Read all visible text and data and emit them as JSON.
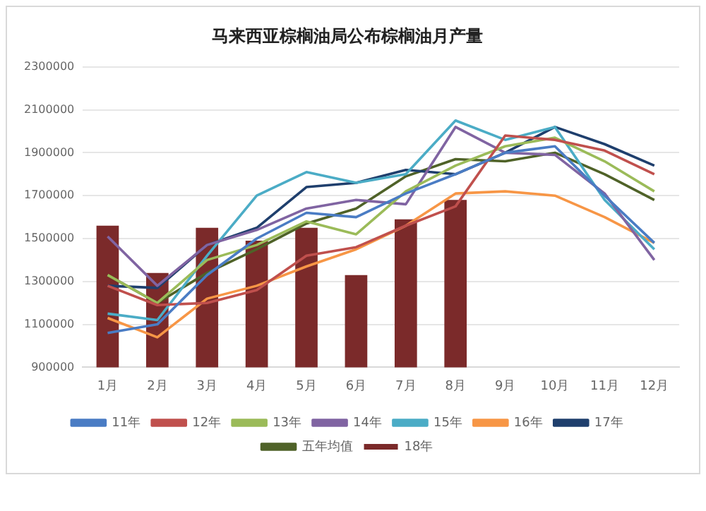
{
  "chart_data": {
    "type": "line",
    "title": "马来西亚棕榈油局公布棕榈油月产量",
    "categories": [
      "1月",
      "2月",
      "3月",
      "4月",
      "5月",
      "6月",
      "7月",
      "8月",
      "9月",
      "10月",
      "11月",
      "12月"
    ],
    "series": [
      {
        "name": "18年",
        "type": "bar",
        "color": "#7b2a2a",
        "values": [
          1560000,
          1340000,
          1550000,
          1490000,
          1550000,
          1330000,
          1590000,
          1680000,
          null,
          null,
          null,
          null
        ]
      },
      {
        "name": "11年",
        "color": "#4a7cc4",
        "values": [
          1060000,
          1100000,
          1330000,
          1500000,
          1620000,
          1600000,
          1710000,
          1800000,
          1900000,
          1930000,
          1700000,
          1480000
        ]
      },
      {
        "name": "12年",
        "color": "#c0504d",
        "values": [
          1280000,
          1190000,
          1200000,
          1260000,
          1420000,
          1460000,
          1560000,
          1650000,
          1980000,
          1960000,
          1910000,
          1800000
        ]
      },
      {
        "name": "13年",
        "color": "#9bbb59",
        "values": [
          1330000,
          1200000,
          1400000,
          1470000,
          1580000,
          1520000,
          1720000,
          1840000,
          1930000,
          1970000,
          1860000,
          1720000
        ]
      },
      {
        "name": "14年",
        "color": "#8064a2",
        "values": [
          1510000,
          1280000,
          1470000,
          1540000,
          1640000,
          1680000,
          1660000,
          2020000,
          1900000,
          1890000,
          1710000,
          1400000
        ]
      },
      {
        "name": "15年",
        "color": "#4bacc6",
        "values": [
          1150000,
          1120000,
          1420000,
          1700000,
          1810000,
          1760000,
          1800000,
          2050000,
          1960000,
          2020000,
          1680000,
          1450000
        ]
      },
      {
        "name": "16年",
        "color": "#f79646",
        "values": [
          1130000,
          1040000,
          1220000,
          1280000,
          1370000,
          1450000,
          1560000,
          1710000,
          1720000,
          1700000,
          1600000,
          1480000
        ]
      },
      {
        "name": "17年",
        "color": "#1f3f6d",
        "values": [
          1280000,
          1270000,
          1470000,
          1550000,
          1740000,
          1760000,
          1820000,
          1800000,
          1900000,
          2020000,
          1940000,
          1840000
        ]
      },
      {
        "name": "五年均值",
        "color": "#4f6228",
        "values": [
          1330000,
          1200000,
          1340000,
          1450000,
          1570000,
          1640000,
          1790000,
          1870000,
          1860000,
          1900000,
          1800000,
          1680000
        ]
      }
    ],
    "ylim": [
      900000,
      2300000
    ],
    "yticks": [
      900000,
      1100000,
      1300000,
      1500000,
      1700000,
      1900000,
      2100000,
      2300000
    ],
    "grid": "y",
    "legend": "bottom",
    "marker": "none"
  }
}
